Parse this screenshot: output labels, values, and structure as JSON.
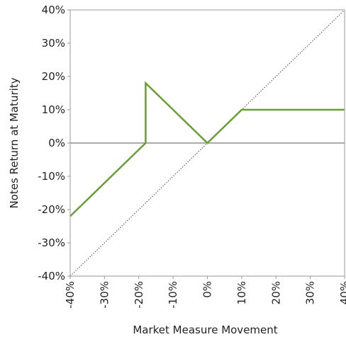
{
  "chart_data": {
    "type": "line",
    "xlabel": "Market Measure Movement",
    "ylabel": "Notes Return at Maturity",
    "xlim": [
      -40,
      40
    ],
    "ylim": [
      -40,
      40
    ],
    "x_ticks": [
      -40,
      -30,
      -20,
      -10,
      0,
      10,
      20,
      30,
      40
    ],
    "y_ticks": [
      -40,
      -30,
      -20,
      -10,
      0,
      10,
      20,
      30,
      40
    ],
    "x_tick_labels": [
      "-40%",
      "-30%",
      "-20%",
      "-10%",
      "0%",
      "10%",
      "20%",
      "30%",
      "40%"
    ],
    "y_tick_labels": [
      "-40%",
      "-30%",
      "-20%",
      "-10%",
      "0%",
      "10%",
      "20%",
      "30%",
      "40%"
    ],
    "series": [
      {
        "style": "solid",
        "color": "#6a9e35",
        "x": [
          -40,
          -18,
          -18,
          0,
          10,
          40
        ],
        "y": [
          -22,
          0,
          18,
          0,
          10,
          10
        ]
      },
      {
        "style": "dotted",
        "color": "#444444",
        "x": [
          -40,
          40
        ],
        "y": [
          -40,
          40
        ]
      }
    ],
    "zero_line": {
      "color": "#555555"
    }
  }
}
